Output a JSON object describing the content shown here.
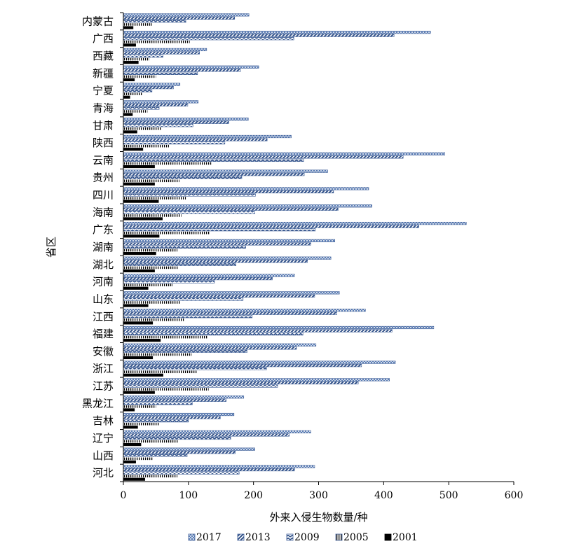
{
  "chart_data": {
    "type": "bar",
    "orientation": "horizontal",
    "title": "",
    "xlabel": "外来入侵生物数量/种",
    "ylabel": "省区",
    "xlim": [
      0,
      600
    ],
    "xticks": [
      0,
      100,
      200,
      300,
      400,
      500,
      600
    ],
    "grid": false,
    "legend_position": "bottom",
    "categories": [
      "内蒙古",
      "广西",
      "西藏",
      "新疆",
      "宁夏",
      "青海",
      "甘肃",
      "陕西",
      "云南",
      "贵州",
      "四川",
      "海南",
      "广东",
      "湖南",
      "湖北",
      "河南",
      "山东",
      "江西",
      "福建",
      "安徽",
      "浙江",
      "江苏",
      "黑龙江",
      "吉林",
      "辽宁",
      "山西",
      "河北"
    ],
    "series": [
      {
        "name": "2017",
        "color": "#4f74b0",
        "pattern": "crosshatch",
        "values": [
          193,
          472,
          128,
          208,
          87,
          115,
          192,
          258,
          494,
          314,
          377,
          382,
          527,
          325,
          319,
          263,
          332,
          372,
          477,
          296,
          418,
          409,
          185,
          170,
          288,
          202,
          294
        ]
      },
      {
        "name": "2013",
        "color": "#4f74b0",
        "pattern": "diagonal",
        "values": [
          171,
          416,
          117,
          180,
          77,
          99,
          162,
          221,
          430,
          278,
          323,
          330,
          454,
          288,
          283,
          229,
          294,
          328,
          413,
          266,
          366,
          361,
          158,
          149,
          255,
          172,
          263
        ]
      },
      {
        "name": "2009",
        "color": "#4f74b0",
        "pattern": "zigzag",
        "values": [
          96,
          262,
          61,
          114,
          44,
          55,
          107,
          156,
          277,
          182,
          203,
          202,
          295,
          188,
          173,
          140,
          184,
          198,
          276,
          190,
          220,
          237,
          106,
          100,
          165,
          98,
          178
        ]
      },
      {
        "name": "2005",
        "color": "#000000",
        "pattern": "vertical",
        "values": [
          44,
          102,
          40,
          50,
          30,
          37,
          58,
          70,
          135,
          86,
          96,
          89,
          133,
          83,
          85,
          76,
          88,
          93,
          129,
          105,
          113,
          131,
          50,
          56,
          85,
          46,
          83
        ]
      },
      {
        "name": "2001",
        "color": "#000000",
        "pattern": "solid",
        "values": [
          15,
          19,
          23,
          17,
          10,
          14,
          21,
          30,
          48,
          48,
          54,
          60,
          55,
          50,
          48,
          38,
          38,
          45,
          57,
          45,
          61,
          48,
          17,
          22,
          27,
          19,
          33
        ]
      }
    ]
  }
}
